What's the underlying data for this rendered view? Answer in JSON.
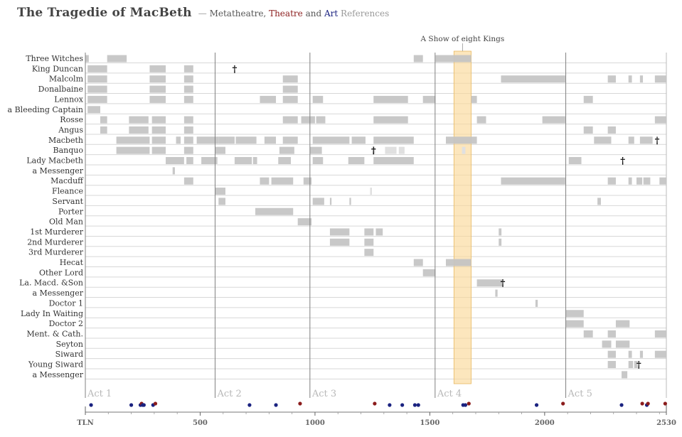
{
  "header": {
    "title": "The Tragedie of MacBeth",
    "subtitle": {
      "dash": "—",
      "meta": "Metatheatre,",
      "theatre": "Theatre",
      "and": "and",
      "art": "Art",
      "references": "References"
    }
  },
  "chart_data": {
    "type": "gantt",
    "x_label_start": "TLN",
    "x_ticks": [
      500,
      1000,
      1500,
      2000
    ],
    "x_end_label": "2530",
    "xlim": [
      0,
      2530
    ],
    "grid": true,
    "colors": {
      "bar": "#c3c3c3",
      "bar_light": "#e0e0e0",
      "highlight": "#fbd89a",
      "theatre": "#8b1c1c",
      "art": "#1a2280",
      "act_line": "#808080"
    },
    "acts": [
      {
        "label": "Act 1",
        "start": 0
      },
      {
        "label": "Act 2",
        "start": 565
      },
      {
        "label": "Act 3",
        "start": 978
      },
      {
        "label": "Act 4",
        "start": 1523
      },
      {
        "label": "Act 5",
        "start": 2092
      }
    ],
    "highlight": {
      "label": "A Show of eight Kings",
      "start": 1605,
      "end": 1680
    },
    "characters": [
      {
        "name": "Three Witches",
        "segments": [
          [
            0,
            15
          ],
          [
            95,
            180
          ],
          [
            1430,
            1470
          ],
          [
            1525,
            1680
          ]
        ]
      },
      {
        "name": "King Duncan",
        "segments": [
          [
            10,
            95
          ],
          [
            280,
            350
          ],
          [
            430,
            470
          ]
        ],
        "death": 650
      },
      {
        "name": "Malcolm",
        "segments": [
          [
            10,
            95
          ],
          [
            280,
            350
          ],
          [
            430,
            470
          ],
          [
            860,
            925
          ],
          [
            1810,
            2090
          ],
          [
            2275,
            2310
          ],
          [
            2365,
            2380
          ],
          [
            2415,
            2428
          ],
          [
            2480,
            2530
          ]
        ]
      },
      {
        "name": "Donalbaine",
        "segments": [
          [
            10,
            95
          ],
          [
            280,
            350
          ],
          [
            430,
            470
          ],
          [
            860,
            925
          ]
        ]
      },
      {
        "name": "Lennox",
        "segments": [
          [
            10,
            95
          ],
          [
            280,
            350
          ],
          [
            430,
            470
          ],
          [
            760,
            830
          ],
          [
            860,
            925
          ],
          [
            990,
            1035
          ],
          [
            1255,
            1405
          ],
          [
            1470,
            1525
          ],
          [
            1680,
            1705
          ],
          [
            2170,
            2210
          ]
        ]
      },
      {
        "name": "a Bleeding Captain",
        "segments": [
          [
            10,
            65
          ]
        ]
      },
      {
        "name": "Rosse",
        "segments": [
          [
            65,
            95
          ],
          [
            190,
            275
          ],
          [
            290,
            350
          ],
          [
            430,
            470
          ],
          [
            860,
            925
          ],
          [
            940,
            1000
          ],
          [
            1005,
            1045
          ],
          [
            1255,
            1405
          ],
          [
            1705,
            1745
          ],
          [
            1990,
            2090
          ],
          [
            2480,
            2530
          ]
        ]
      },
      {
        "name": "Angus",
        "segments": [
          [
            65,
            95
          ],
          [
            190,
            275
          ],
          [
            290,
            350
          ],
          [
            430,
            470
          ],
          [
            2170,
            2210
          ],
          [
            2275,
            2310
          ]
        ]
      },
      {
        "name": "Macbeth",
        "segments": [
          [
            135,
            280
          ],
          [
            290,
            350
          ],
          [
            395,
            415
          ],
          [
            430,
            470
          ],
          [
            485,
            580
          ],
          [
            580,
            650
          ],
          [
            655,
            745
          ],
          [
            780,
            830
          ],
          [
            860,
            925
          ],
          [
            990,
            1150
          ],
          [
            1160,
            1220
          ],
          [
            1255,
            1430
          ],
          [
            1570,
            1705
          ],
          [
            2215,
            2290
          ],
          [
            2365,
            2390
          ],
          [
            2415,
            2470
          ]
        ],
        "death": 2490
      },
      {
        "name": "Banquo",
        "segments": [
          [
            135,
            280
          ],
          [
            290,
            350
          ],
          [
            430,
            470
          ],
          [
            565,
            610
          ],
          [
            845,
            910
          ],
          [
            978,
            1030
          ]
        ],
        "segments_light": [
          [
            1250,
            1262
          ],
          [
            1305,
            1355
          ],
          [
            1365,
            1390
          ],
          [
            1640,
            1655
          ]
        ],
        "death": 1255
      },
      {
        "name": "Lady Macbeth",
        "segments": [
          [
            350,
            430
          ],
          [
            440,
            470
          ],
          [
            505,
            575
          ],
          [
            650,
            725
          ],
          [
            730,
            748
          ],
          [
            840,
            895
          ],
          [
            990,
            1035
          ],
          [
            1145,
            1215
          ],
          [
            1255,
            1430
          ],
          [
            2105,
            2160
          ]
        ],
        "death": 2340
      },
      {
        "name": "a Messenger",
        "segments": [
          [
            380,
            390
          ]
        ]
      },
      {
        "name": "Macduff",
        "segments": [
          [
            430,
            470
          ],
          [
            760,
            800
          ],
          [
            810,
            905
          ],
          [
            950,
            985
          ],
          [
            1810,
            2090
          ],
          [
            2275,
            2310
          ],
          [
            2365,
            2380
          ],
          [
            2400,
            2425
          ],
          [
            2430,
            2460
          ],
          [
            2500,
            2530
          ]
        ]
      },
      {
        "name": "Fleance",
        "segments": [
          [
            565,
            610
          ]
        ],
        "segments_light": [
          [
            1240,
            1248
          ]
        ]
      },
      {
        "name": "Servant",
        "segments": [
          [
            580,
            610
          ],
          [
            990,
            1040
          ],
          [
            1065,
            1072
          ],
          [
            1150,
            1157
          ],
          [
            2230,
            2245
          ]
        ]
      },
      {
        "name": "Porter",
        "segments": [
          [
            740,
            905
          ]
        ]
      },
      {
        "name": "Old Man",
        "segments": [
          [
            925,
            985
          ]
        ]
      },
      {
        "name": "1st Murderer",
        "segments": [
          [
            1065,
            1150
          ],
          [
            1215,
            1255
          ],
          [
            1265,
            1295
          ],
          [
            1800,
            1812
          ]
        ]
      },
      {
        "name": "2nd Murderer",
        "segments": [
          [
            1065,
            1150
          ],
          [
            1215,
            1255
          ],
          [
            1800,
            1812
          ]
        ]
      },
      {
        "name": "3rd Murderer",
        "segments": [
          [
            1215,
            1255
          ]
        ]
      },
      {
        "name": "Hecat",
        "segments": [
          [
            1430,
            1470
          ],
          [
            1570,
            1680
          ]
        ]
      },
      {
        "name": "Other Lord",
        "segments": [
          [
            1470,
            1525
          ]
        ]
      },
      {
        "name": "La. Macd. &Son",
        "segments": [
          [
            1705,
            1815
          ]
        ],
        "death": 1818
      },
      {
        "name": "a Messenger",
        "segments": [
          [
            1785,
            1795
          ]
        ]
      },
      {
        "name": "Doctor 1",
        "segments": [
          [
            1960,
            1970
          ]
        ]
      },
      {
        "name": "Lady In Waiting",
        "segments": [
          [
            2092,
            2170
          ]
        ]
      },
      {
        "name": "Doctor 2",
        "segments": [
          [
            2092,
            2170
          ],
          [
            2310,
            2370
          ]
        ]
      },
      {
        "name": "Ment. & Cath.",
        "segments": [
          [
            2170,
            2210
          ],
          [
            2275,
            2310
          ],
          [
            2480,
            2530
          ]
        ]
      },
      {
        "name": "Seyton",
        "segments": [
          [
            2250,
            2290
          ],
          [
            2310,
            2370
          ]
        ]
      },
      {
        "name": "Siward",
        "segments": [
          [
            2275,
            2310
          ],
          [
            2365,
            2380
          ],
          [
            2415,
            2428
          ],
          [
            2480,
            2530
          ]
        ]
      },
      {
        "name": "Young Siward",
        "segments": [
          [
            2275,
            2310
          ],
          [
            2365,
            2385
          ],
          [
            2390,
            2405
          ]
        ],
        "death": 2410
      },
      {
        "name": "a Messenger",
        "segments": [
          [
            2335,
            2360
          ]
        ]
      }
    ],
    "references": [
      {
        "tln": 25,
        "kind": "art"
      },
      {
        "tln": 200,
        "kind": "art"
      },
      {
        "tln": 240,
        "kind": "art"
      },
      {
        "tln": 245,
        "kind": "theatre"
      },
      {
        "tln": 250,
        "kind": "art"
      },
      {
        "tln": 255,
        "kind": "art"
      },
      {
        "tln": 295,
        "kind": "art"
      },
      {
        "tln": 305,
        "kind": "theatre"
      },
      {
        "tln": 715,
        "kind": "art"
      },
      {
        "tln": 830,
        "kind": "art"
      },
      {
        "tln": 935,
        "kind": "theatre"
      },
      {
        "tln": 1260,
        "kind": "theatre"
      },
      {
        "tln": 1325,
        "kind": "art"
      },
      {
        "tln": 1380,
        "kind": "art"
      },
      {
        "tln": 1435,
        "kind": "art"
      },
      {
        "tln": 1450,
        "kind": "art"
      },
      {
        "tln": 1645,
        "kind": "art"
      },
      {
        "tln": 1655,
        "kind": "art"
      },
      {
        "tln": 1670,
        "kind": "theatre"
      },
      {
        "tln": 1965,
        "kind": "art"
      },
      {
        "tln": 2080,
        "kind": "theatre"
      },
      {
        "tln": 2335,
        "kind": "art"
      },
      {
        "tln": 2425,
        "kind": "theatre"
      },
      {
        "tln": 2445,
        "kind": "art"
      },
      {
        "tln": 2450,
        "kind": "theatre"
      },
      {
        "tln": 2525,
        "kind": "theatre"
      }
    ]
  }
}
